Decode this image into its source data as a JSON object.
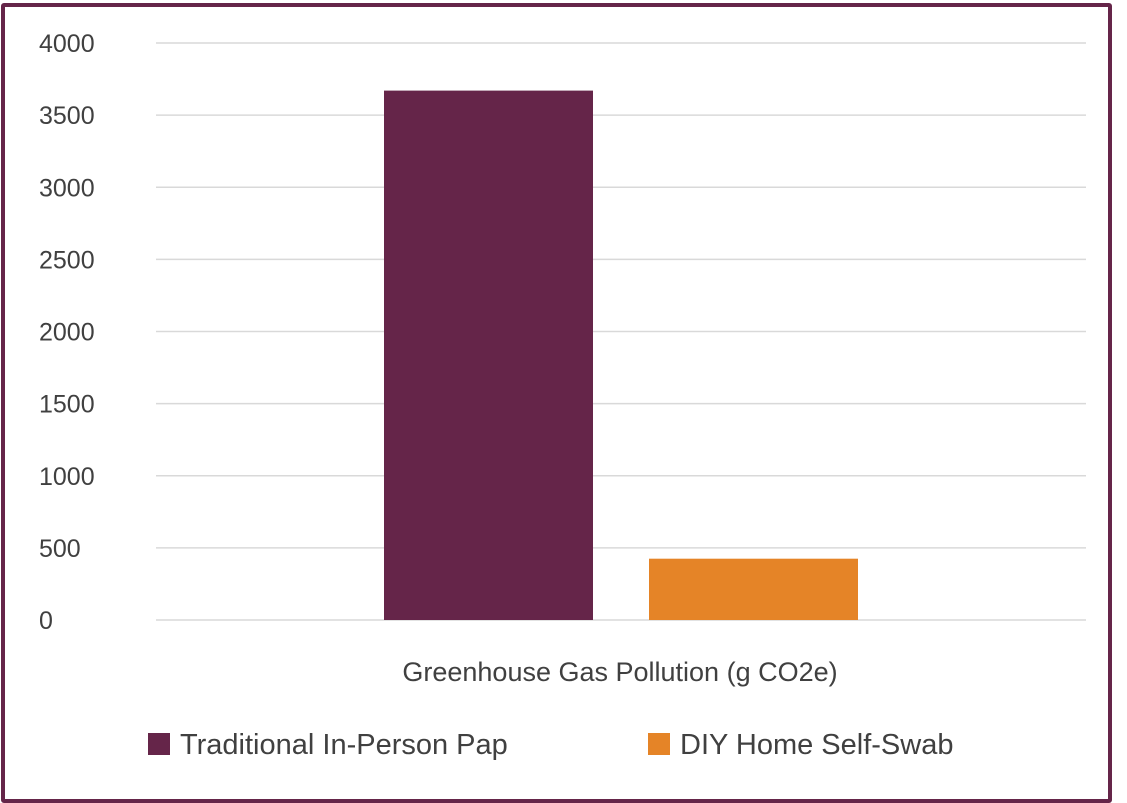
{
  "chart_data": {
    "type": "bar",
    "categories": [
      "Greenhouse Gas Pollution (g CO2e)"
    ],
    "series": [
      {
        "name": "Traditional In-Person Pap",
        "values": [
          3670
        ],
        "color": "#652549"
      },
      {
        "name": "DIY Home Self-Swab",
        "values": [
          425
        ],
        "color": "#E58427"
      }
    ],
    "yticks": [
      "0",
      "500",
      "1000",
      "1500",
      "2000",
      "2500",
      "3000",
      "3500",
      "4000"
    ],
    "ylim": [
      0,
      4000
    ],
    "grid": true,
    "legend": "bottom",
    "title": "",
    "xlabel": "",
    "ylabel": ""
  }
}
